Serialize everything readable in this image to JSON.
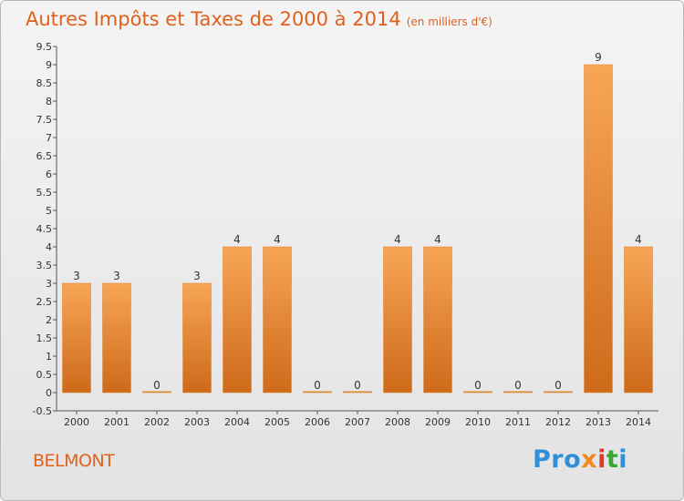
{
  "header": {
    "title": "Autres Impôts et Taxes de 2000 à 2014",
    "unit": "(en milliers d'€)"
  },
  "footer": {
    "commune": "BELMONT",
    "logo_parts": [
      "Pro",
      "x",
      "i",
      "t",
      "i"
    ]
  },
  "colors": {
    "accent": "#e0601e",
    "bar_top": "#f7a656",
    "bar_bottom": "#cd6a1a"
  },
  "chart_data": {
    "type": "bar",
    "title": "Autres Impôts et Taxes de 2000 à 2014",
    "categories": [
      "2000",
      "2001",
      "2002",
      "2003",
      "2004",
      "2005",
      "2006",
      "2007",
      "2008",
      "2009",
      "2010",
      "2011",
      "2012",
      "2013",
      "2014"
    ],
    "values": [
      3,
      3,
      0,
      3,
      4,
      4,
      0,
      0,
      4,
      4,
      0,
      0,
      0,
      9,
      4
    ],
    "value_labels": [
      "3",
      "3",
      "0",
      "3",
      "4",
      "4",
      "0",
      "0",
      "4",
      "4",
      "0",
      "0",
      "0",
      "9",
      "4"
    ],
    "y_ticks": [
      "-0.5",
      "0",
      "0.5",
      "1",
      "1.5",
      "2",
      "2.5",
      "3",
      "3.5",
      "4",
      "4.5",
      "5",
      "5.5",
      "6",
      "6.5",
      "7",
      "7.5",
      "8",
      "8.5",
      "9",
      "9.5"
    ],
    "ylim": [
      -0.5,
      9.5
    ],
    "grid": false,
    "legend": "none"
  }
}
